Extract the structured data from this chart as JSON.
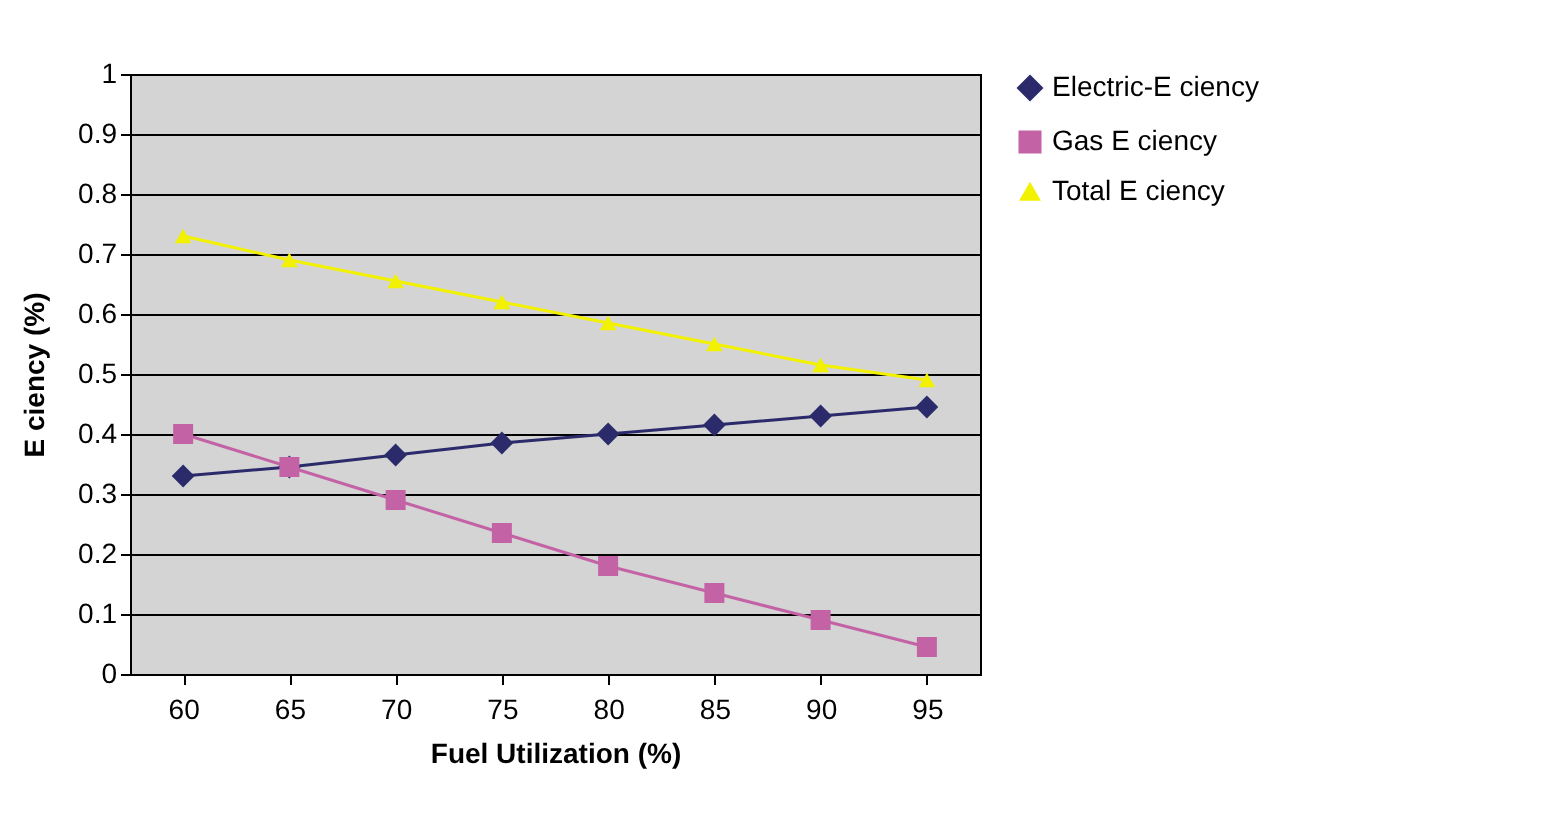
{
  "chart_data": {
    "type": "line",
    "xlabel": "Fuel Utilization (%)",
    "ylabel": "E ciency (%)",
    "categories": [
      "60",
      "65",
      "70",
      "75",
      "80",
      "85",
      "90",
      "95"
    ],
    "series": [
      {
        "name": "Electric-E ciency",
        "color": "#2b2b6b",
        "marker": "diamond",
        "values": [
          0.33,
          0.345,
          0.365,
          0.385,
          0.4,
          0.415,
          0.43,
          0.445
        ]
      },
      {
        "name": "Gas E ciency",
        "color": "#c462a6",
        "marker": "square",
        "values": [
          0.4,
          0.345,
          0.29,
          0.235,
          0.18,
          0.135,
          0.09,
          0.045
        ]
      },
      {
        "name": "Total E ciency",
        "color": "#f2f200",
        "marker": "triangle",
        "values": [
          0.73,
          0.69,
          0.655,
          0.62,
          0.585,
          0.55,
          0.515,
          0.49
        ]
      }
    ],
    "ylim": [
      0,
      1
    ],
    "yticks": [
      0,
      0.1,
      0.2,
      0.3,
      0.4,
      0.5,
      0.6,
      0.7,
      0.8,
      0.9,
      1
    ],
    "grid": "y",
    "legend": "right"
  }
}
